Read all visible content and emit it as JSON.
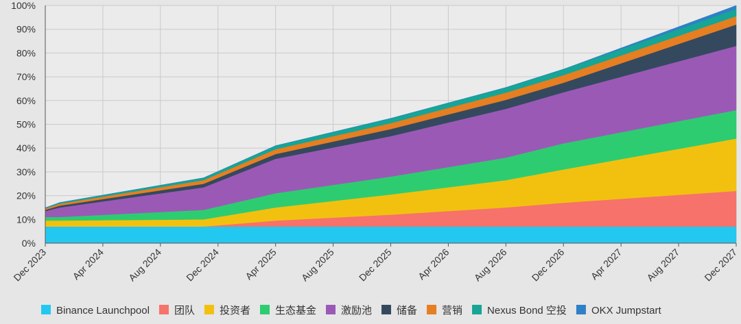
{
  "chart_data": {
    "type": "area",
    "stacked": true,
    "x": [
      "Dec 2023",
      "Jan 2024",
      "Nov 2024",
      "Apr 2025",
      "Dec 2025",
      "Aug 2026",
      "Dec 2026",
      "Dec 2027"
    ],
    "x_tick_labels": [
      "Dec 2023",
      "Apr 2024",
      "Aug 2024",
      "Dec 2024",
      "Apr 2025",
      "Aug 2025",
      "Dec 2025",
      "Apr 2026",
      "Aug 2026",
      "Dec 2026",
      "Apr 2027",
      "Aug 2027",
      "Dec 2027"
    ],
    "y_tick_labels": [
      "0%",
      "10%",
      "20%",
      "30%",
      "40%",
      "50%",
      "60%",
      "70%",
      "80%",
      "90%",
      "100%"
    ],
    "ylim": [
      0,
      100
    ],
    "y_unit": "%",
    "grid": true,
    "legend_position": "bottom",
    "series": [
      {
        "name": "Binance Launchpool",
        "color": "#22c8f0",
        "values": [
          7,
          7,
          7,
          7,
          7,
          7,
          7,
          7
        ]
      },
      {
        "name": "团队",
        "color": "#f6726b",
        "values": [
          0,
          0,
          0,
          2.5,
          5,
          8,
          10,
          15
        ]
      },
      {
        "name": "投资者",
        "color": "#f2c10f",
        "values": [
          2.5,
          2.5,
          3,
          5.5,
          8.5,
          11.5,
          14,
          22
        ]
      },
      {
        "name": "生态基金",
        "color": "#2ecc71",
        "values": [
          1.5,
          1.5,
          4,
          6,
          7.5,
          9.5,
          11,
          12
        ]
      },
      {
        "name": "激励池",
        "color": "#9b59b6",
        "values": [
          2.5,
          4,
          9.5,
          14.5,
          17,
          20.5,
          21.5,
          27
        ]
      },
      {
        "name": "储备",
        "color": "#34495e",
        "values": [
          0.5,
          0.8,
          1.5,
          2,
          3,
          3.8,
          4,
          9
        ]
      },
      {
        "name": "营销",
        "color": "#e67e22",
        "values": [
          0.6,
          0.8,
          1.5,
          2,
          2.5,
          3,
          3.2,
          3.5
        ]
      },
      {
        "name": "Nexus Bond 空投",
        "color": "#16a596",
        "values": [
          0.3,
          0.5,
          1,
          1.5,
          2,
          2.2,
          2.5,
          3
        ]
      },
      {
        "name": "OKX Jumpstart",
        "color": "#2f80c6",
        "values": [
          0,
          0,
          0,
          0,
          0,
          0,
          0,
          1.5
        ]
      }
    ]
  }
}
